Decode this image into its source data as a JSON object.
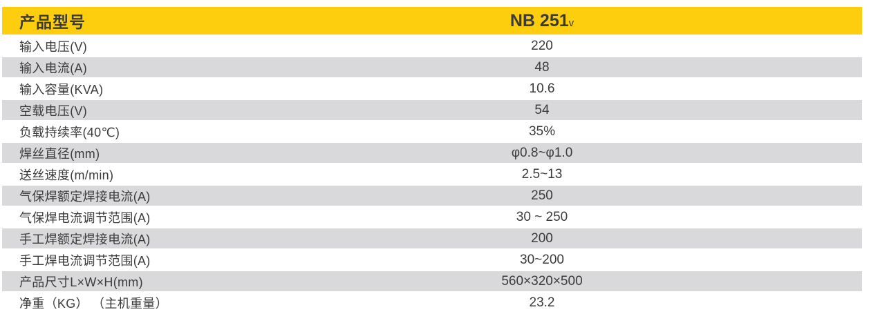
{
  "table": {
    "header": {
      "label": "产品型号",
      "model": "NB 251",
      "model_suffix": "v"
    },
    "rows": [
      {
        "label": "输入电压(V)",
        "value": "220"
      },
      {
        "label": "输入电流(A)",
        "value": "48"
      },
      {
        "label": "输入容量(KVA)",
        "value": "10.6"
      },
      {
        "label": "空载电压(V)",
        "value": "54"
      },
      {
        "label": "负载持续率(40℃)",
        "value": "35%"
      },
      {
        "label": "焊丝直径(mm)",
        "value": "φ0.8~φ1.0"
      },
      {
        "label": "送丝速度(m/min)",
        "value": "2.5~13"
      },
      {
        "label": "气保焊额定焊接电流(A)",
        "value": "250"
      },
      {
        "label": "气保焊电流调节范围(A)",
        "value": "30 ~ 250"
      },
      {
        "label": "手工焊额定焊接电流(A)",
        "value": "200"
      },
      {
        "label": "手工焊电流调节范围(A)",
        "value": "30~200"
      },
      {
        "label": "产品尺寸L×W×H(mm)",
        "value": "560×320×500"
      },
      {
        "label": "净重（KG） （主机重量）",
        "value": "23.2"
      }
    ],
    "colors": {
      "header_bg": "#FDCE0D",
      "alt_row_bg": "#D9D9DB",
      "text": "#3B3B3B"
    }
  }
}
